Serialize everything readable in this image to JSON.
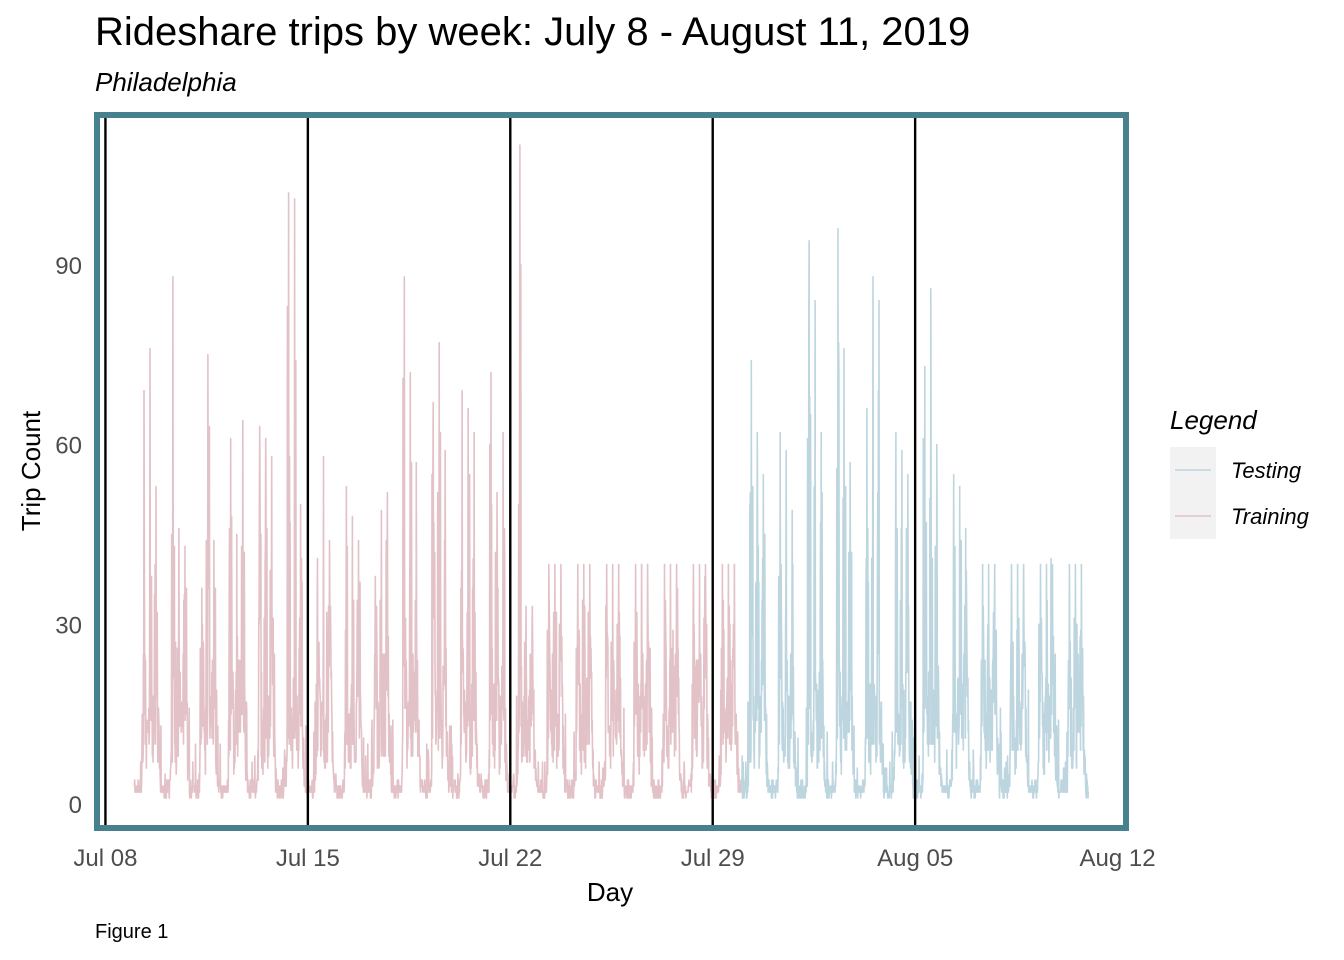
{
  "chart_data": {
    "type": "line",
    "title": "Rideshare trips by week: July 8 - August 11, 2019",
    "subtitle": "Philadelphia",
    "xlabel": "Day",
    "ylabel": "Trip Count",
    "caption": "Figure 1",
    "x_type": "date",
    "xlim": [
      "2019-07-07T17:00",
      "2019-08-12T07:00"
    ],
    "ylim": [
      -4,
      115
    ],
    "x_ticks": [
      {
        "date": "2019-07-08",
        "label": "Jul 08"
      },
      {
        "date": "2019-07-15",
        "label": "Jul 15"
      },
      {
        "date": "2019-07-22",
        "label": "Jul 22"
      },
      {
        "date": "2019-07-29",
        "label": "Jul 29"
      },
      {
        "date": "2019-08-05",
        "label": "Aug 05"
      },
      {
        "date": "2019-08-12",
        "label": "Aug 12"
      }
    ],
    "y_ticks": [
      0,
      30,
      60,
      90
    ],
    "week_lines": [
      "2019-07-08",
      "2019-07-15",
      "2019-07-22",
      "2019-07-29",
      "2019-08-05"
    ],
    "grid": false,
    "legend": {
      "title": "Legend",
      "position": "right",
      "entries": [
        {
          "name": "Testing",
          "color": "#bdd5df"
        },
        {
          "name": "Training",
          "color": "#e2c1c7"
        }
      ]
    },
    "panel_border_color": "#48818e",
    "week_line_color": "#000000",
    "series": [
      {
        "name": "Training",
        "color": "#e2c1c7",
        "start": "2019-07-09",
        "end": "2019-07-30",
        "baseline_min": 1,
        "daily_peaks": [
          [
            69,
            76,
            53
          ],
          [
            88,
            46,
            43
          ],
          [
            36,
            75,
            44
          ],
          [
            61,
            45,
            64
          ],
          [
            63,
            61,
            58
          ],
          [
            102,
            101,
            50
          ],
          [
            41,
            58,
            44
          ],
          [
            53,
            48,
            44
          ],
          [
            38,
            49,
            52
          ],
          [
            88,
            72,
            57
          ],
          [
            67,
            77,
            59
          ],
          [
            69,
            66,
            62
          ],
          [
            72,
            52,
            62
          ],
          [
            110,
            33,
            28
          ]
        ]
      },
      {
        "name": "Testing",
        "color": "#bdd5df",
        "start": "2019-07-30",
        "end": "2019-08-11",
        "baseline_min": 1,
        "daily_peaks": [
          [
            74,
            62,
            55
          ],
          [
            62,
            59,
            49
          ],
          [
            94,
            84,
            62
          ],
          [
            96,
            76,
            57
          ],
          [
            66,
            88,
            84
          ],
          [
            62,
            59,
            55
          ],
          [
            73,
            86,
            60
          ],
          [
            55,
            53,
            46
          ]
        ]
      }
    ]
  }
}
